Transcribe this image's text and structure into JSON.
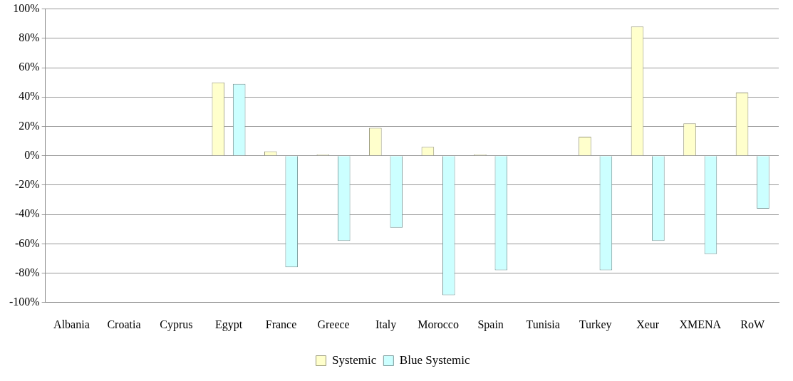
{
  "chart_data": {
    "type": "bar",
    "categories": [
      "Albania",
      "Croatia",
      "Cyprus",
      "Egypt",
      "France",
      "Greece",
      "Italy",
      "Morocco",
      "Spain",
      "Tunisia",
      "Turkey",
      "Xeur",
      "XMENA",
      "RoW"
    ],
    "series": [
      {
        "name": "Systemic",
        "color": "#ffffcc",
        "values": [
          null,
          null,
          null,
          50,
          3,
          1,
          19,
          6,
          1,
          null,
          13,
          88,
          22,
          43
        ]
      },
      {
        "name": "Blue Systemic",
        "color": "#ccffff",
        "values": [
          null,
          null,
          null,
          49,
          -76,
          -58,
          -49,
          -95,
          -78,
          null,
          -78,
          -58,
          -67,
          -36
        ]
      }
    ],
    "ylim": [
      -100,
      100
    ],
    "yticks": [
      {
        "value": -100,
        "label": "-100%"
      },
      {
        "value": -80,
        "label": "-80%"
      },
      {
        "value": -60,
        "label": "-60%"
      },
      {
        "value": -40,
        "label": "-40%"
      },
      {
        "value": -20,
        "label": "-20%"
      },
      {
        "value": 0,
        "label": "0%"
      },
      {
        "value": 20,
        "label": "20%"
      },
      {
        "value": 40,
        "label": "40%"
      },
      {
        "value": 60,
        "label": "60%"
      },
      {
        "value": 80,
        "label": "80%"
      },
      {
        "value": 100,
        "label": "100%"
      }
    ],
    "grid": "y",
    "legend": "bottom"
  }
}
